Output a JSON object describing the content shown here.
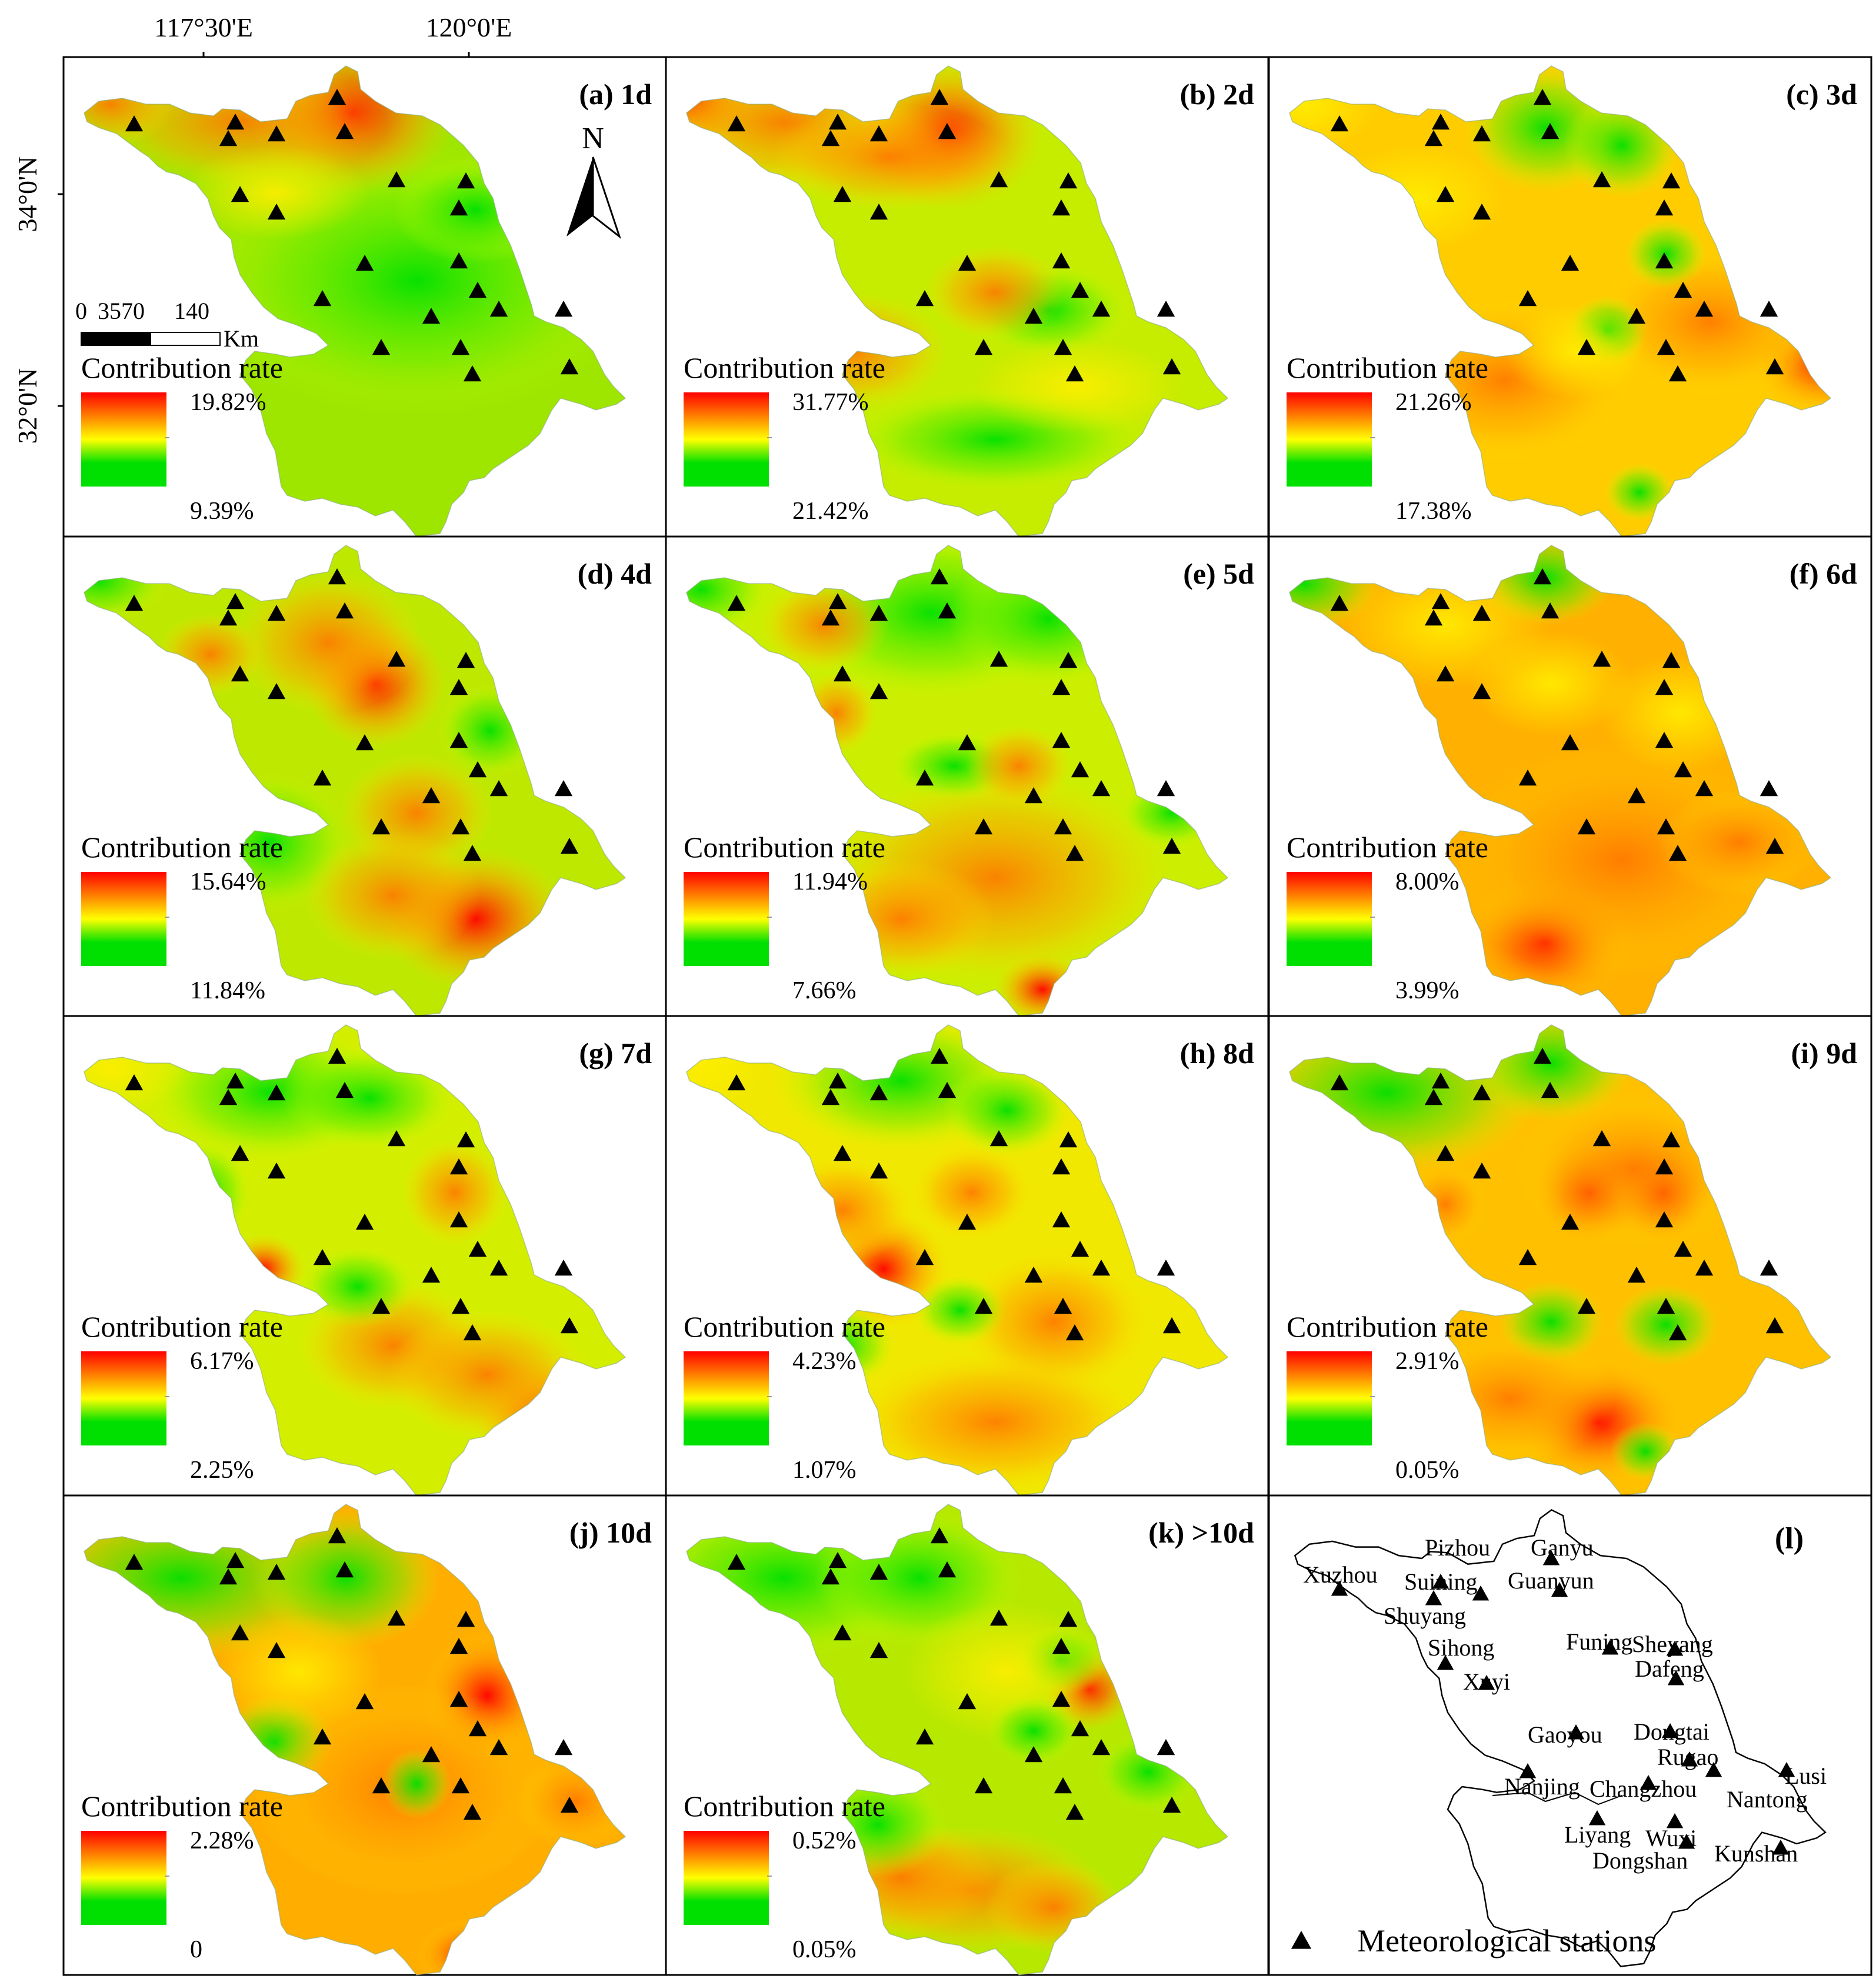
{
  "axes": {
    "top_labels": [
      "117°30'E",
      "120°0'E"
    ],
    "left_labels": [
      "34°0'N",
      "32°0'N"
    ]
  },
  "legend_title": "Contribution rate",
  "panels": [
    {
      "label": "(a) 1d",
      "max": "19.82%",
      "min": "9.39%"
    },
    {
      "label": "(b) 2d",
      "max": "31.77%",
      "min": "21.42%"
    },
    {
      "label": "(c) 3d",
      "max": "21.26%",
      "min": "17.38%"
    },
    {
      "label": "(d) 4d",
      "max": "15.64%",
      "min": "11.84%"
    },
    {
      "label": "(e) 5d",
      "max": "11.94%",
      "min": "7.66%"
    },
    {
      "label": "(f) 6d",
      "max": "8.00%",
      "min": "3.99%"
    },
    {
      "label": "(g) 7d",
      "max": "6.17%",
      "min": "2.25%"
    },
    {
      "label": "(h) 8d",
      "max": "4.23%",
      "min": "1.07%"
    },
    {
      "label": "(i) 9d",
      "max": "2.91%",
      "min": "0.05%"
    },
    {
      "label": "(j) 10d",
      "max": "2.28%",
      "min": "0"
    },
    {
      "label": "(k) >10d",
      "max": "0.52%",
      "min": "0.05%"
    }
  ],
  "scale_bar": {
    "ticks": [
      "0",
      "35",
      "70",
      "140"
    ],
    "unit": "Km"
  },
  "north_arrow": {
    "letter": "N",
    "icon": "north-arrow-icon"
  },
  "colors": {
    "high": "#ff0000",
    "mid": "#ffff00",
    "low": "#00e000",
    "station": "#000000"
  },
  "locator": {
    "label": "(l)",
    "legend": "Meteorological stations",
    "stations": [
      "Xuzhou",
      "Pizhou",
      "Suining",
      "Shuyang",
      "Sihong",
      "Xuyi",
      "Ganyu",
      "Guanyun",
      "Funing",
      "Sheyang",
      "Dafeng",
      "Gaoyou",
      "Dongtai",
      "Rugao",
      "Nanjing",
      "Changzhou",
      "Nantong",
      "Lusi",
      "Liyang",
      "Wuxi",
      "Dongshan",
      "Kunshan"
    ]
  }
}
